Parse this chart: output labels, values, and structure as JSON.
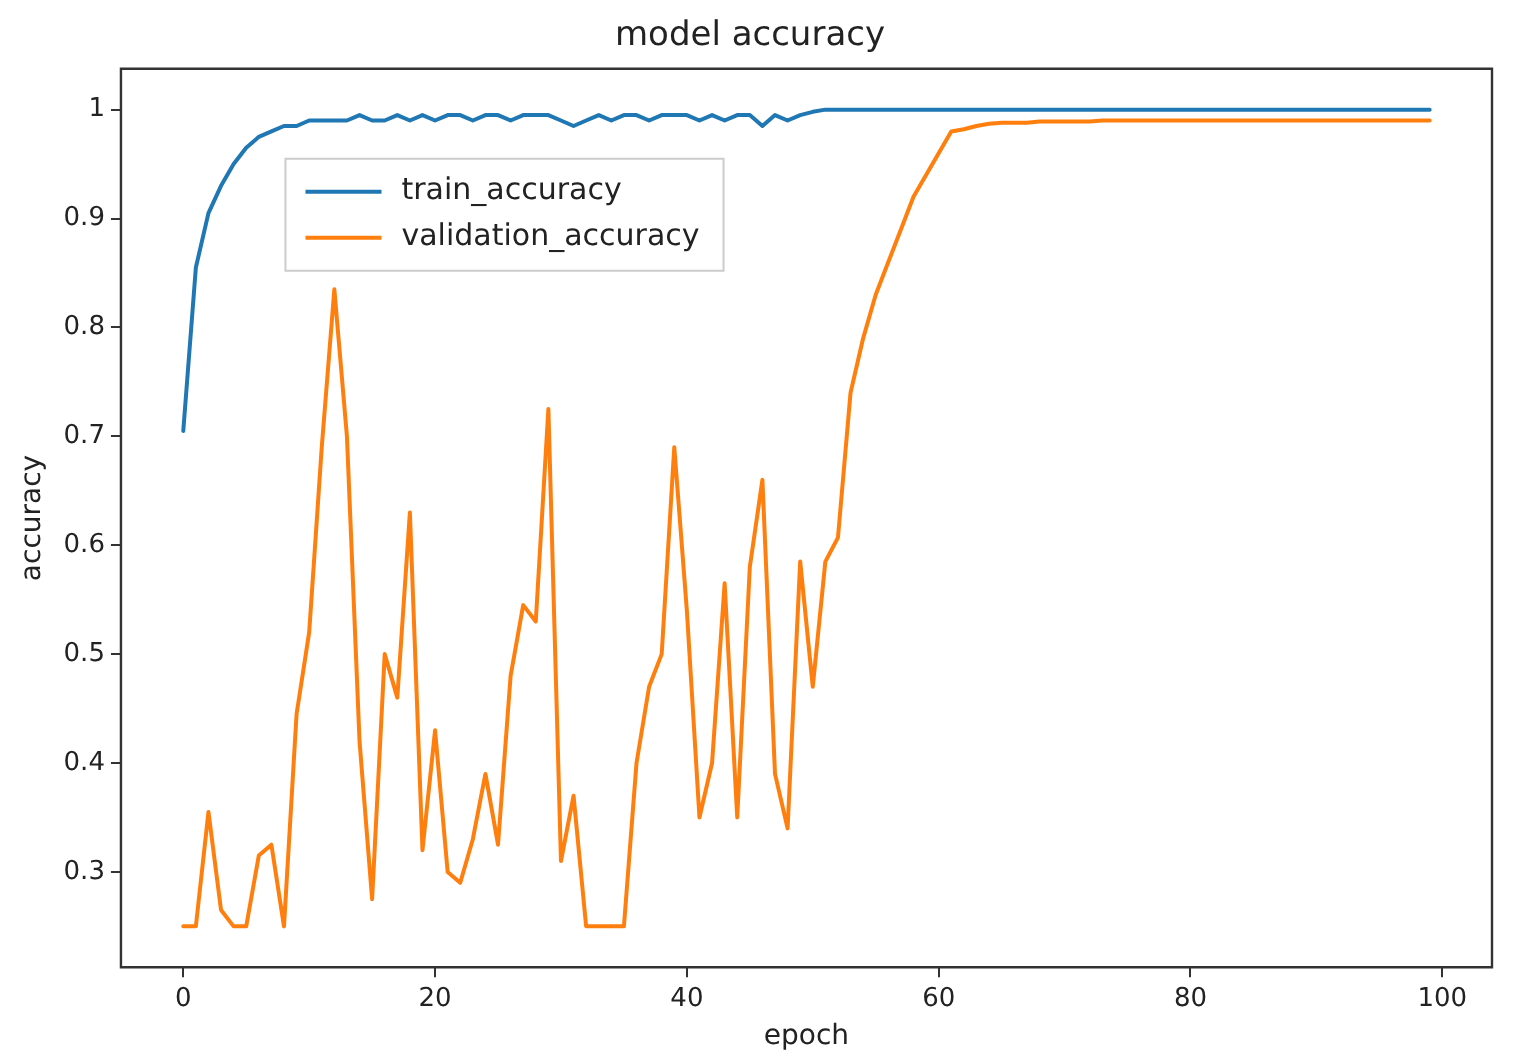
{
  "chart_data": {
    "type": "line",
    "title": "model accuracy",
    "xlabel": "epoch",
    "ylabel": "accuracy",
    "x": [
      0,
      1,
      2,
      3,
      4,
      5,
      6,
      7,
      8,
      9,
      10,
      11,
      12,
      13,
      14,
      15,
      16,
      17,
      18,
      19,
      20,
      21,
      22,
      23,
      24,
      25,
      26,
      27,
      28,
      29,
      30,
      31,
      32,
      33,
      34,
      35,
      36,
      37,
      38,
      39,
      40,
      41,
      42,
      43,
      44,
      45,
      46,
      47,
      48,
      49,
      50,
      51,
      52,
      53,
      54,
      55,
      56,
      57,
      58,
      59,
      60,
      61,
      62,
      63,
      64,
      65,
      66,
      67,
      68,
      69,
      70,
      71,
      72,
      73,
      74,
      75,
      76,
      77,
      78,
      79,
      80,
      81,
      82,
      83,
      84,
      85,
      86,
      87,
      88,
      89,
      90,
      91,
      92,
      93,
      94,
      95,
      96,
      97,
      98,
      99
    ],
    "series": [
      {
        "name": "train_accuracy",
        "color": "#1f77b4",
        "values": [
          0.705,
          0.855,
          0.905,
          0.93,
          0.95,
          0.965,
          0.975,
          0.98,
          0.985,
          0.985,
          0.99,
          0.99,
          0.99,
          0.99,
          0.995,
          0.99,
          0.99,
          0.995,
          0.99,
          0.995,
          0.99,
          0.995,
          0.995,
          0.99,
          0.995,
          0.995,
          0.99,
          0.995,
          0.995,
          0.995,
          0.99,
          0.985,
          0.99,
          0.995,
          0.99,
          0.995,
          0.995,
          0.99,
          0.995,
          0.995,
          0.995,
          0.99,
          0.995,
          0.99,
          0.995,
          0.995,
          0.985,
          0.995,
          0.99,
          0.995,
          0.998,
          1.0,
          1.0,
          1.0,
          1.0,
          1.0,
          1.0,
          1.0,
          1.0,
          1.0,
          1.0,
          1.0,
          1.0,
          1.0,
          1.0,
          1.0,
          1.0,
          1.0,
          1.0,
          1.0,
          1.0,
          1.0,
          1.0,
          1.0,
          1.0,
          1.0,
          1.0,
          1.0,
          1.0,
          1.0,
          1.0,
          1.0,
          1.0,
          1.0,
          1.0,
          1.0,
          1.0,
          1.0,
          1.0,
          1.0,
          1.0,
          1.0,
          1.0,
          1.0,
          1.0,
          1.0,
          1.0,
          1.0,
          1.0,
          1.0
        ]
      },
      {
        "name": "validation_accuracy",
        "color": "#ff7f0e",
        "values": [
          0.25,
          0.25,
          0.355,
          0.265,
          0.25,
          0.25,
          0.315,
          0.325,
          0.25,
          0.445,
          0.52,
          0.69,
          0.835,
          0.7,
          0.42,
          0.275,
          0.5,
          0.46,
          0.63,
          0.32,
          0.43,
          0.3,
          0.29,
          0.33,
          0.39,
          0.325,
          0.48,
          0.545,
          0.53,
          0.725,
          0.31,
          0.37,
          0.25,
          0.25,
          0.25,
          0.25,
          0.4,
          0.47,
          0.5,
          0.69,
          0.54,
          0.35,
          0.4,
          0.565,
          0.35,
          0.58,
          0.66,
          0.39,
          0.34,
          0.585,
          0.47,
          0.585,
          0.607,
          0.74,
          0.79,
          0.83,
          0.86,
          0.89,
          0.92,
          0.94,
          0.96,
          0.98,
          0.982,
          0.985,
          0.987,
          0.988,
          0.988,
          0.988,
          0.989,
          0.989,
          0.989,
          0.989,
          0.989,
          0.99,
          0.99,
          0.99,
          0.99,
          0.99,
          0.99,
          0.99,
          0.99,
          0.99,
          0.99,
          0.99,
          0.99,
          0.99,
          0.99,
          0.99,
          0.99,
          0.99,
          0.99,
          0.99,
          0.99,
          0.99,
          0.99,
          0.99,
          0.99,
          0.99,
          0.99,
          0.99
        ]
      }
    ],
    "xlim": [
      -4.95,
      103.95
    ],
    "xticks": [
      0,
      20,
      40,
      60,
      80,
      100
    ],
    "ylim": [
      0.2125,
      1.0375
    ],
    "yticks": [
      0.3,
      0.4,
      0.5,
      0.6,
      0.7,
      0.8,
      0.9,
      1.0
    ],
    "grid": false,
    "legend": "top left",
    "marker": "none",
    "line_style": "solid"
  }
}
